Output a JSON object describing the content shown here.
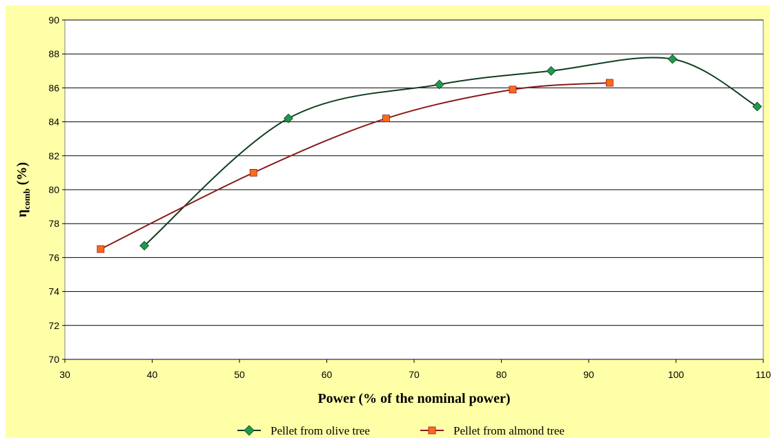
{
  "chart_data": {
    "type": "line",
    "title": "",
    "xlabel": "Power (% of the nominal power)",
    "ylabel_main": "η",
    "ylabel_sub": "comb",
    "ylabel_suffix": " (%)",
    "xlim": [
      30,
      110
    ],
    "ylim": [
      70,
      90
    ],
    "xticks": [
      30,
      40,
      50,
      60,
      70,
      80,
      90,
      100,
      110
    ],
    "yticks": [
      70,
      72,
      74,
      76,
      78,
      80,
      82,
      84,
      86,
      88,
      90
    ],
    "grid": "horizontal",
    "legend_position": "bottom",
    "colors": {
      "background": "#ffffa8",
      "plot_background": "#ffffff",
      "gridline": "#000000"
    },
    "series": [
      {
        "name": "Pellet from olive tree",
        "marker": "diamond",
        "line_color": "#0f3d1e",
        "marker_color": "#1e9a4e",
        "x": [
          39.1,
          55.6,
          72.9,
          85.7,
          99.6,
          109.3
        ],
        "y": [
          76.7,
          84.2,
          86.2,
          87.0,
          87.7,
          84.9
        ]
      },
      {
        "name": "Pellet from almond tree",
        "marker": "square",
        "line_color": "#8b1a1a",
        "marker_color": "#ff6a1a",
        "x": [
          34.1,
          51.6,
          66.8,
          81.3,
          92.4
        ],
        "y": [
          76.5,
          81.0,
          84.2,
          85.9,
          86.3
        ]
      }
    ]
  }
}
